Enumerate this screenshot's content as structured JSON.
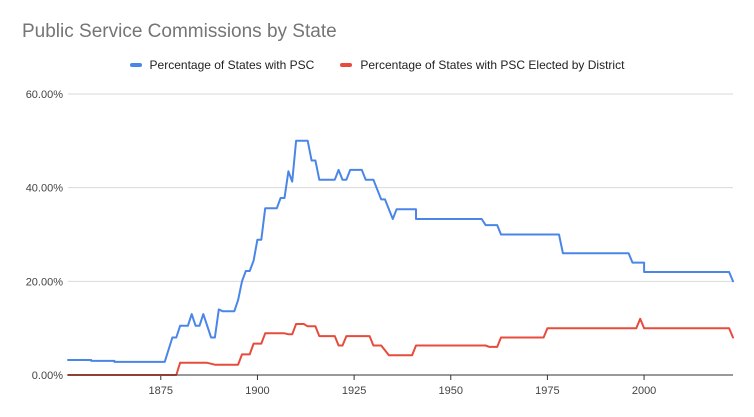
{
  "chart_data": {
    "type": "line",
    "title": "Public Service Commissions by State",
    "xlabel": "",
    "ylabel": "",
    "xlim": [
      1851,
      2023
    ],
    "ylim": [
      0,
      60
    ],
    "x_ticks": [
      1875,
      1900,
      1925,
      1950,
      1975,
      2000
    ],
    "x_tick_labels": [
      "1875",
      "1900",
      "1925",
      "1950",
      "1975",
      "2000"
    ],
    "y_ticks": [
      0,
      20,
      40,
      60
    ],
    "y_tick_labels": [
      "0.00%",
      "20.00%",
      "40.00%",
      "60.00%"
    ],
    "grid": true,
    "legend_position": "top",
    "series": [
      {
        "name": "Percentage of States with PSC",
        "color": "#4a86e8",
        "points": [
          [
            1851,
            3.2
          ],
          [
            1857,
            3.2
          ],
          [
            1857,
            3.0
          ],
          [
            1863,
            3.0
          ],
          [
            1863,
            2.8
          ],
          [
            1876,
            2.8
          ],
          [
            1878,
            8.0
          ],
          [
            1879,
            8.0
          ],
          [
            1880,
            10.5
          ],
          [
            1882,
            10.5
          ],
          [
            1883,
            13.0
          ],
          [
            1884,
            10.5
          ],
          [
            1885,
            10.5
          ],
          [
            1886,
            13.0
          ],
          [
            1888,
            8.0
          ],
          [
            1889,
            8.0
          ],
          [
            1890,
            14.0
          ],
          [
            1891,
            13.6
          ],
          [
            1894,
            13.6
          ],
          [
            1895,
            16.0
          ],
          [
            1896,
            20.0
          ],
          [
            1897,
            22.2
          ],
          [
            1898,
            22.2
          ],
          [
            1899,
            24.4
          ],
          [
            1900,
            28.9
          ],
          [
            1901,
            28.9
          ],
          [
            1902,
            35.6
          ],
          [
            1905,
            35.6
          ],
          [
            1906,
            37.8
          ],
          [
            1907,
            37.8
          ],
          [
            1908,
            43.5
          ],
          [
            1909,
            41.3
          ],
          [
            1910,
            50.0
          ],
          [
            1913,
            50.0
          ],
          [
            1914,
            45.8
          ],
          [
            1915,
            45.8
          ],
          [
            1916,
            41.7
          ],
          [
            1920,
            41.7
          ],
          [
            1921,
            43.8
          ],
          [
            1922,
            41.7
          ],
          [
            1923,
            41.7
          ],
          [
            1924,
            43.8
          ],
          [
            1927,
            43.8
          ],
          [
            1928,
            41.7
          ],
          [
            1930,
            41.7
          ],
          [
            1932,
            37.5
          ],
          [
            1933,
            37.5
          ],
          [
            1934,
            35.4
          ],
          [
            1935,
            33.3
          ],
          [
            1936,
            35.4
          ],
          [
            1941,
            35.4
          ],
          [
            1941,
            33.3
          ],
          [
            1958,
            33.3
          ],
          [
            1959,
            32.0
          ],
          [
            1962,
            32.0
          ],
          [
            1963,
            30.0
          ],
          [
            1978,
            30.0
          ],
          [
            1979,
            26.0
          ],
          [
            1996,
            26.0
          ],
          [
            1997,
            24.0
          ],
          [
            2000,
            24.0
          ],
          [
            2000,
            22.0
          ],
          [
            2022,
            22.0
          ],
          [
            2023,
            20.0
          ]
        ]
      },
      {
        "name": "Percentage of States with PSC Elected by District",
        "color": "#e74b3c",
        "points": [
          [
            1851,
            0.0
          ],
          [
            1879,
            0.0
          ],
          [
            1880,
            2.6
          ],
          [
            1887,
            2.6
          ],
          [
            1889,
            2.2
          ],
          [
            1895,
            2.2
          ],
          [
            1896,
            4.4
          ],
          [
            1898,
            4.4
          ],
          [
            1899,
            6.7
          ],
          [
            1901,
            6.7
          ],
          [
            1902,
            8.9
          ],
          [
            1907,
            8.9
          ],
          [
            1908,
            8.7
          ],
          [
            1909,
            8.7
          ],
          [
            1910,
            10.9
          ],
          [
            1912,
            10.9
          ],
          [
            1913,
            10.4
          ],
          [
            1915,
            10.4
          ],
          [
            1916,
            8.3
          ],
          [
            1920,
            8.3
          ],
          [
            1921,
            6.3
          ],
          [
            1922,
            6.3
          ],
          [
            1923,
            8.3
          ],
          [
            1929,
            8.3
          ],
          [
            1930,
            6.3
          ],
          [
            1932,
            6.3
          ],
          [
            1934,
            4.2
          ],
          [
            1940,
            4.2
          ],
          [
            1941,
            6.3
          ],
          [
            1959,
            6.3
          ],
          [
            1960,
            6.0
          ],
          [
            1962,
            6.0
          ],
          [
            1963,
            8.0
          ],
          [
            1974,
            8.0
          ],
          [
            1975,
            10.0
          ],
          [
            1998,
            10.0
          ],
          [
            1999,
            12.0
          ],
          [
            2000,
            10.0
          ],
          [
            2022,
            10.0
          ],
          [
            2023,
            8.0
          ]
        ]
      }
    ]
  }
}
